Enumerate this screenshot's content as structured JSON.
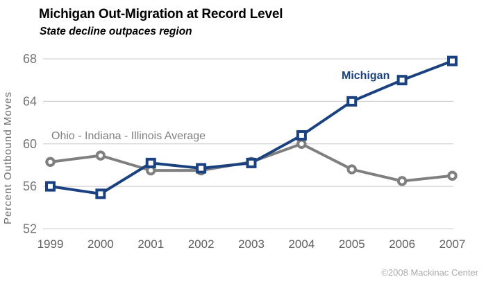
{
  "header": {
    "title": "Michigan Out-Migration at Record Level",
    "subtitle": "State decline outpaces region"
  },
  "chart_data": {
    "type": "line",
    "title": "Michigan Out-Migration at Record Level",
    "subtitle": "State decline outpaces region",
    "categories": [
      "1999",
      "2000",
      "2001",
      "2002",
      "2003",
      "2004",
      "2005",
      "2006",
      "2007"
    ],
    "series": [
      {
        "id": "michigan",
        "name": "Michigan",
        "values": [
          56.0,
          55.3,
          58.2,
          57.7,
          58.2,
          60.8,
          64.0,
          66.0,
          67.8
        ],
        "color": "#1B4280",
        "marker": "square",
        "label_pos": {
          "x": 492,
          "y": 46
        },
        "label_size": 16,
        "label_weight": 600
      },
      {
        "id": "region",
        "name": "Ohio - Indiana - Illinois Average",
        "values": [
          58.3,
          58.9,
          57.5,
          57.5,
          58.3,
          60.0,
          57.6,
          56.5,
          57.0
        ],
        "color": "#7F7F7F",
        "marker": "circle",
        "label_pos": {
          "x": 74,
          "y": 133
        },
        "label_size": 16,
        "label_weight": 400
      }
    ],
    "xlabel": "",
    "ylabel": "Percent Outbound Moves",
    "ylim": [
      52,
      68
    ],
    "yticks": [
      52,
      56,
      60,
      64,
      68
    ],
    "grid": "horizontal",
    "legend_position": "inline-annotations"
  },
  "colors": {
    "gridline": "#C8C8C8",
    "y_tick_text": "#757575",
    "x_tick_text": "#606060",
    "axis_title_text": "#6E6E6E",
    "michigan_line": "#1B4280",
    "region_line": "#7F7F7F"
  },
  "footer": {
    "copyright": "©2008 Mackinac Center"
  }
}
